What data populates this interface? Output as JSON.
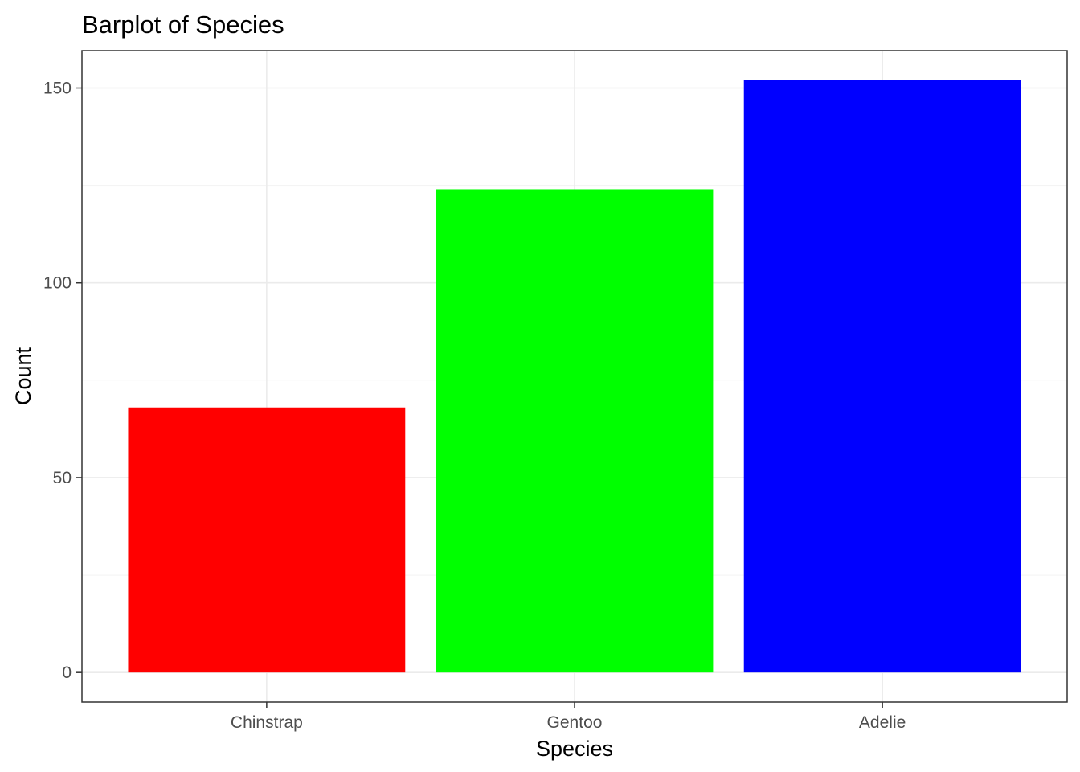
{
  "chart_data": {
    "type": "bar",
    "title": "Barplot of Species",
    "xlabel": "Species",
    "ylabel": "Count",
    "categories": [
      "Chinstrap",
      "Gentoo",
      "Adelie"
    ],
    "values": [
      68,
      124,
      152
    ],
    "colors": [
      "#FF0000",
      "#00FF00",
      "#0000FF"
    ],
    "ylim": [
      -7.6,
      159.6
    ],
    "yticks": [
      0,
      50,
      100,
      150
    ],
    "ytick_labels": [
      "0",
      "50",
      "100",
      "150"
    ],
    "grid": true,
    "legend": "none"
  }
}
